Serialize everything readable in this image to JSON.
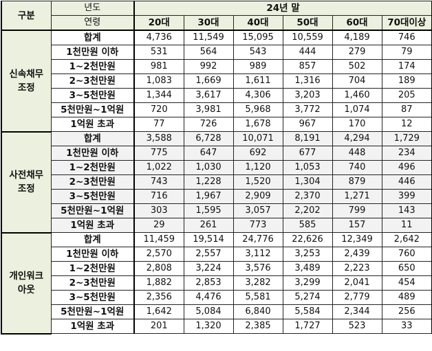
{
  "table": {
    "corner_label": "구분",
    "year_label": "년도",
    "age_label": "연령",
    "period_label": "24년 말",
    "columns": [
      "20대",
      "30대",
      "40대",
      "50대",
      "60대",
      "70대이상"
    ],
    "groups": [
      {
        "name_line1": "신속채무",
        "name_line2": "조정",
        "shaded": false,
        "rows": [
          {
            "label": "합계",
            "values": [
              "4,736",
              "11,549",
              "15,095",
              "10,559",
              "4,189",
              "746"
            ]
          },
          {
            "label": "1천만원 이하",
            "values": [
              "531",
              "564",
              "543",
              "444",
              "279",
              "79"
            ]
          },
          {
            "label": "1~2천만원",
            "values": [
              "981",
              "992",
              "989",
              "857",
              "502",
              "174"
            ]
          },
          {
            "label": "2~3천만원",
            "values": [
              "1,083",
              "1,669",
              "1,611",
              "1,316",
              "704",
              "189"
            ]
          },
          {
            "label": "3~5천만원",
            "values": [
              "1,344",
              "3,617",
              "4,306",
              "3,203",
              "1,460",
              "205"
            ]
          },
          {
            "label": "5천만원~1억원",
            "values": [
              "720",
              "3,981",
              "5,968",
              "3,772",
              "1,074",
              "87"
            ]
          },
          {
            "label": "1억원 초과",
            "values": [
              "77",
              "726",
              "1,678",
              "967",
              "170",
              "12"
            ]
          }
        ]
      },
      {
        "name_line1": "사전채무",
        "name_line2": "조정",
        "shaded": true,
        "rows": [
          {
            "label": "합계",
            "values": [
              "3,588",
              "6,728",
              "10,071",
              "8,191",
              "4,294",
              "1,729"
            ]
          },
          {
            "label": "1천만원 이하",
            "values": [
              "775",
              "647",
              "692",
              "677",
              "448",
              "234"
            ]
          },
          {
            "label": "1~2천만원",
            "values": [
              "1,022",
              "1,030",
              "1,120",
              "1,053",
              "740",
              "496"
            ]
          },
          {
            "label": "2~3천만원",
            "values": [
              "743",
              "1,228",
              "1,520",
              "1,304",
              "879",
              "446"
            ]
          },
          {
            "label": "3~5천만원",
            "values": [
              "716",
              "1,967",
              "2,909",
              "2,370",
              "1,271",
              "399"
            ]
          },
          {
            "label": "5천만원~1억원",
            "values": [
              "303",
              "1,595",
              "3,057",
              "2,202",
              "799",
              "143"
            ]
          },
          {
            "label": "1억원 초과",
            "values": [
              "29",
              "261",
              "773",
              "585",
              "157",
              "11"
            ]
          }
        ]
      },
      {
        "name_line1": "개인워크",
        "name_line2": "아웃",
        "shaded": false,
        "rows": [
          {
            "label": "합계",
            "values": [
              "11,459",
              "19,514",
              "24,776",
              "22,626",
              "12,349",
              "2,642"
            ]
          },
          {
            "label": "1천만원 이하",
            "values": [
              "2,570",
              "2,557",
              "3,112",
              "3,253",
              "2,439",
              "760"
            ]
          },
          {
            "label": "1~2천만원",
            "values": [
              "2,808",
              "3,224",
              "3,576",
              "3,489",
              "2,223",
              "650"
            ]
          },
          {
            "label": "2~3천만원",
            "values": [
              "1,882",
              "2,853",
              "3,282",
              "3,299",
              "2,041",
              "454"
            ]
          },
          {
            "label": "3~5천만원",
            "values": [
              "2,356",
              "4,476",
              "5,581",
              "5,274",
              "2,779",
              "489"
            ]
          },
          {
            "label": "5천만원~1억원",
            "values": [
              "1,642",
              "5,084",
              "6,840",
              "5,584",
              "2,344",
              "256"
            ]
          },
          {
            "label": "1억원 초과",
            "values": [
              "201",
              "1,320",
              "2,385",
              "1,727",
              "523",
              "33"
            ]
          }
        ]
      }
    ]
  },
  "colors": {
    "header_bg": "#ebf1de",
    "shaded_row_bg": "#f2f2f2",
    "border": "#000000"
  }
}
